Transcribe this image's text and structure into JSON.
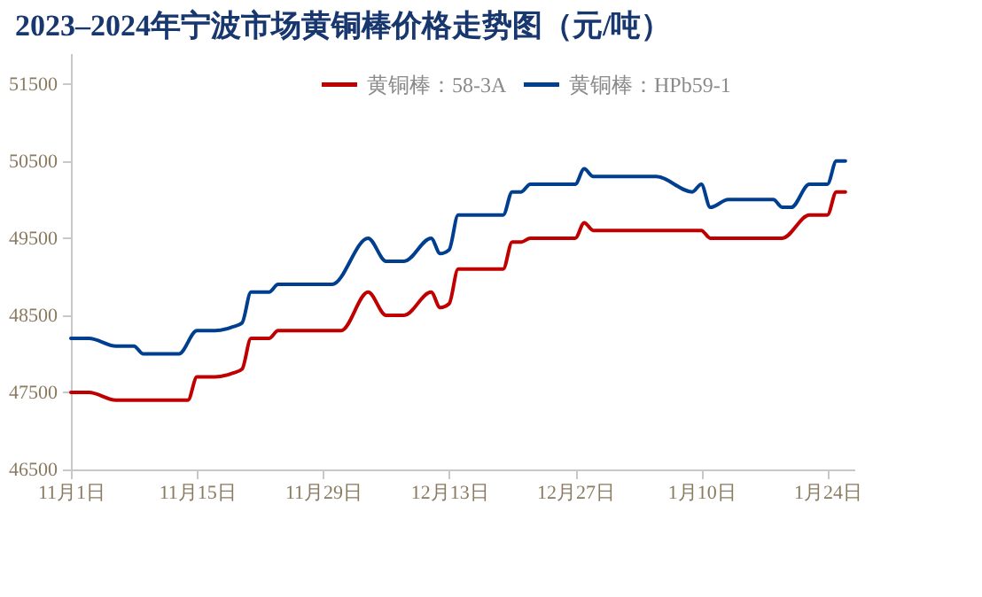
{
  "chart_data": {
    "type": "line",
    "title": "2023–2024年宁波市场黄铜棒价格走势图（元/吨）",
    "xlim": [
      "2023-11-01",
      "2024-01-27"
    ],
    "xticks": [
      {
        "value": "2023-11-01",
        "label": "11月1日"
      },
      {
        "value": "2023-11-15",
        "label": "11月15日"
      },
      {
        "value": "2023-11-29",
        "label": "11月29日"
      },
      {
        "value": "2023-12-13",
        "label": "12月13日"
      },
      {
        "value": "2023-12-27",
        "label": "12月27日"
      },
      {
        "value": "2024-01-10",
        "label": "1月10日"
      },
      {
        "value": "2024-01-24",
        "label": "1月24日"
      }
    ],
    "ylim": [
      46500,
      51900
    ],
    "yticks": [
      46500,
      47500,
      48500,
      49500,
      50500,
      51500
    ],
    "grid": false,
    "legend": "top",
    "marker": "none",
    "line_style": "solid",
    "series": [
      {
        "name": "黄铜棒：58-3A",
        "color": "#c00000",
        "x": [
          "2023-11-01",
          "2023-11-03",
          "2023-11-06",
          "2023-11-14",
          "2023-11-15",
          "2023-11-17",
          "2023-11-19",
          "2023-11-20",
          "2023-11-21",
          "2023-11-23",
          "2023-11-24",
          "2023-12-01",
          "2023-12-04",
          "2023-12-06",
          "2023-12-08",
          "2023-12-11",
          "2023-12-12",
          "2023-12-13",
          "2023-12-14",
          "2023-12-19",
          "2023-12-20",
          "2023-12-21",
          "2023-12-22",
          "2023-12-27",
          "2023-12-28",
          "2023-12-29",
          "2024-01-10",
          "2024-01-11",
          "2024-01-19",
          "2024-01-22",
          "2024-01-24",
          "2024-01-25",
          "2024-01-26"
        ],
        "values": [
          47500,
          47500,
          47400,
          47400,
          47700,
          47700,
          47750,
          47800,
          48200,
          48200,
          48300,
          48300,
          48800,
          48500,
          48500,
          48800,
          48600,
          48650,
          49100,
          49100,
          49450,
          49450,
          49500,
          49500,
          49700,
          49600,
          49600,
          49500,
          49500,
          49800,
          49800,
          50100,
          50100
        ]
      },
      {
        "name": "黄铜棒：HPb59-1",
        "color": "#003f8f",
        "x": [
          "2023-11-01",
          "2023-11-03",
          "2023-11-06",
          "2023-11-08",
          "2023-11-09",
          "2023-11-13",
          "2023-11-15",
          "2023-11-17",
          "2023-11-19",
          "2023-11-20",
          "2023-11-21",
          "2023-11-23",
          "2023-11-24",
          "2023-11-30",
          "2023-12-04",
          "2023-12-06",
          "2023-12-08",
          "2023-12-11",
          "2023-12-12",
          "2023-12-13",
          "2023-12-14",
          "2023-12-19",
          "2023-12-20",
          "2023-12-21",
          "2023-12-22",
          "2023-12-27",
          "2023-12-28",
          "2023-12-29",
          "2024-01-05",
          "2024-01-09",
          "2024-01-10",
          "2024-01-11",
          "2024-01-13",
          "2024-01-18",
          "2024-01-19",
          "2024-01-20",
          "2024-01-22",
          "2024-01-24",
          "2024-01-25",
          "2024-01-26"
        ],
        "values": [
          48200,
          48200,
          48100,
          48100,
          48000,
          48000,
          48300,
          48300,
          48350,
          48400,
          48800,
          48800,
          48900,
          48900,
          49500,
          49200,
          49200,
          49500,
          49300,
          49350,
          49800,
          49800,
          50100,
          50100,
          50200,
          50200,
          50400,
          50300,
          50300,
          50100,
          50200,
          49900,
          50000,
          50000,
          49900,
          49900,
          50200,
          50200,
          50500,
          50500
        ]
      }
    ]
  }
}
